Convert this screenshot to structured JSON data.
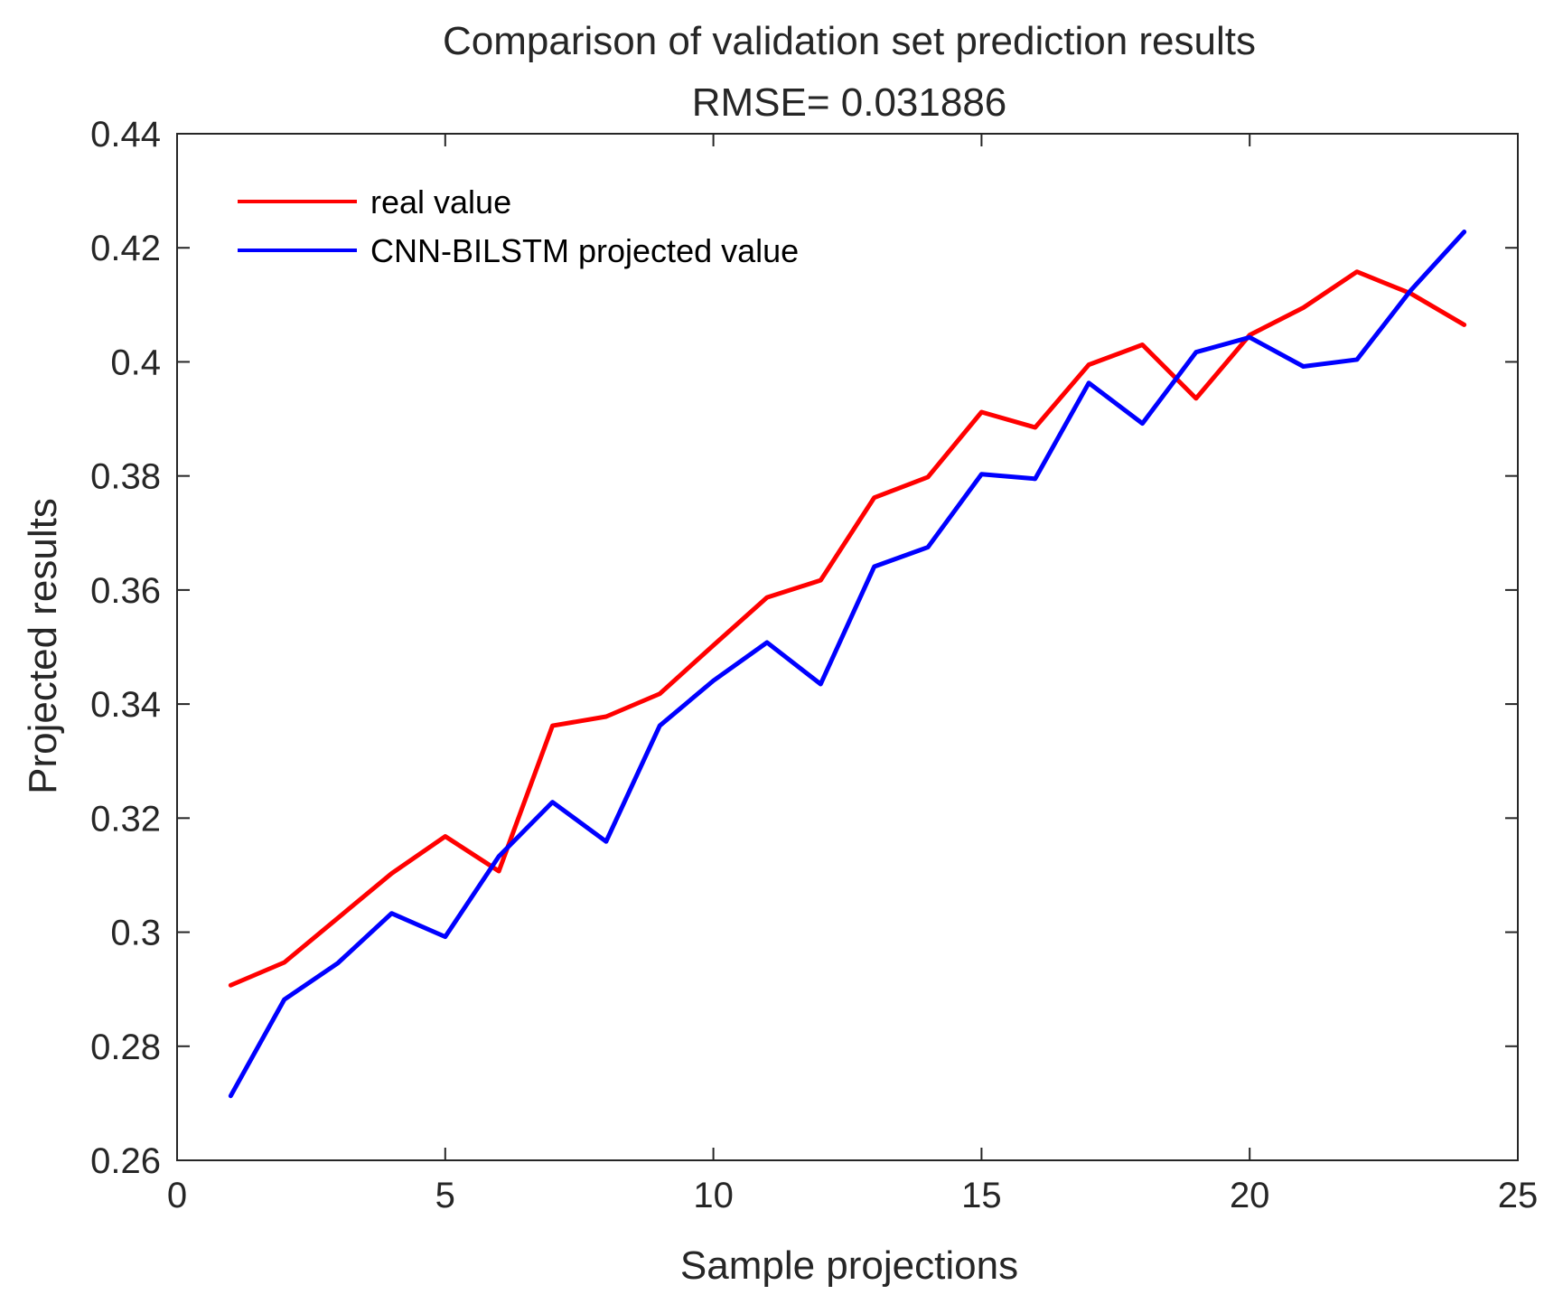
{
  "chart_data": {
    "type": "line",
    "title": "Comparison of validation set prediction results",
    "subtitle": "RMSE= 0.031886",
    "xlabel": "Sample projections",
    "ylabel": "Projected results",
    "xlim": [
      0,
      25
    ],
    "ylim": [
      0.26,
      0.44
    ],
    "xticks": [
      0,
      5,
      10,
      15,
      20,
      25
    ],
    "xtick_labels": [
      "0",
      "5",
      "10",
      "15",
      "20",
      "25"
    ],
    "yticks": [
      0.26,
      0.28,
      0.3,
      0.32,
      0.34,
      0.36,
      0.38,
      0.4,
      0.42,
      0.44
    ],
    "ytick_labels": [
      "0.26",
      "0.28",
      "0.3",
      "0.32",
      "0.34",
      "0.36",
      "0.38",
      "0.4",
      "0.42",
      "0.44"
    ],
    "grid": false,
    "legend_position": "top-left",
    "x": [
      1,
      2,
      3,
      4,
      5,
      6,
      7,
      8,
      9,
      10,
      11,
      12,
      13,
      14,
      15,
      16,
      17,
      18,
      19,
      20,
      21,
      22,
      23,
      24
    ],
    "series": [
      {
        "name": "real value",
        "color": "#ff0000",
        "values": [
          0.2907,
          0.2947,
          0.3025,
          0.3103,
          0.3168,
          0.3107,
          0.3362,
          0.3378,
          0.3418,
          0.3503,
          0.3587,
          0.3617,
          0.3762,
          0.3798,
          0.3912,
          0.3885,
          0.3995,
          0.403,
          0.3936,
          0.4047,
          0.4095,
          0.4158,
          0.412,
          0.4065
        ]
      },
      {
        "name": "CNN-BILSTM projected value",
        "color": "#0000ff",
        "values": [
          0.2713,
          0.2882,
          0.2946,
          0.3033,
          0.2992,
          0.3133,
          0.3228,
          0.3159,
          0.3362,
          0.3441,
          0.3508,
          0.3435,
          0.3641,
          0.3675,
          0.3803,
          0.3795,
          0.3963,
          0.3892,
          0.4017,
          0.4043,
          0.3992,
          0.4004,
          0.4125,
          0.4228
        ]
      }
    ]
  }
}
